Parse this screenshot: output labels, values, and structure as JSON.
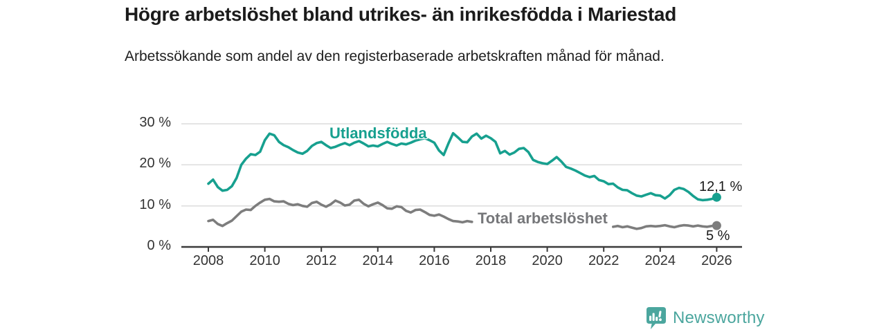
{
  "header": {
    "title": "Högre arbetslöshet bland utrikes- än inrikesfödda i Mariestad",
    "subtitle": "Arbetssökande som andel av den registerbaserade arbetskraften månad för månad."
  },
  "chart_data": {
    "type": "line",
    "unit": "%",
    "ylim": [
      0,
      30
    ],
    "grid": "horizontal",
    "y_ticks": [
      {
        "label": "30 %",
        "value": 30
      },
      {
        "label": "20 %",
        "value": 20
      },
      {
        "label": "10 %",
        "value": 10
      },
      {
        "label": "0 %",
        "value": 0
      }
    ],
    "x_ticks": [
      2008,
      2010,
      2012,
      2014,
      2016,
      2018,
      2020,
      2022,
      2024,
      2026
    ],
    "series": [
      {
        "name": "Utlandsfödda",
        "color": "#17A08F",
        "end_label": "12,1 %",
        "end_value": 12.1,
        "note": "monthly values estimated from chart, sampled every 2 months",
        "segments": [
          {
            "x_start": 2008,
            "x_step": 0.166667,
            "values": [
              15.4,
              16.4,
              14.6,
              13.7,
              13.9,
              14.8,
              16.8,
              20.0,
              21.5,
              22.6,
              22.4,
              23.2,
              26.0,
              27.6,
              27.2,
              25.6,
              24.8,
              24.3,
              23.6,
              23.0,
              22.7,
              23.4,
              24.6,
              25.3,
              25.6,
              24.8,
              24.1,
              24.4,
              24.9,
              25.3,
              24.8,
              25.4,
              25.8,
              25.2,
              24.5,
              24.7,
              24.5,
              25.1,
              25.6,
              25.1,
              24.7,
              25.2,
              25.0,
              25.4,
              25.9,
              26.2,
              26.5,
              26.0,
              25.4,
              23.5,
              22.4,
              25.2,
              27.7,
              26.7,
              25.6,
              25.5,
              26.9,
              27.6,
              26.4,
              27.1,
              26.5,
              25.6,
              22.8,
              23.4,
              22.5,
              23.0,
              23.9,
              24.1,
              23.1,
              21.2,
              20.7,
              20.4,
              20.2,
              21.0,
              21.9,
              20.8,
              19.5,
              19.1,
              18.6,
              18.0,
              17.4,
              17.0,
              17.3,
              16.3,
              16.0,
              15.3,
              15.4,
              14.5,
              13.9,
              13.8,
              13.1,
              12.5,
              12.3,
              12.7,
              13.1,
              12.6,
              12.5,
              11.8,
              12.6,
              13.9,
              14.4,
              14.1,
              13.4,
              12.4,
              11.6,
              11.4,
              11.5,
              11.7,
              12.1
            ]
          }
        ]
      },
      {
        "name": "Total arbetslöshet",
        "color": "#7D7D7D",
        "end_label": "5 %",
        "end_value": 5,
        "note": "line hidden behind its label between ~2017.4 and ~2022.3",
        "segments": [
          {
            "x_start": 2008,
            "x_step": 0.166667,
            "values": [
              6.3,
              6.6,
              5.6,
              5.1,
              5.8,
              6.4,
              7.5,
              8.6,
              9.1,
              9.0,
              10.0,
              10.8,
              11.5,
              11.7,
              11.1,
              11.0,
              11.1,
              10.5,
              10.2,
              10.4,
              10.0,
              9.8,
              10.7,
              11.0,
              10.3,
              9.8,
              10.4,
              11.3,
              10.8,
              10.1,
              10.3,
              11.3,
              11.5,
              10.5,
              9.9,
              10.4,
              10.8,
              10.2,
              9.4,
              9.3,
              9.9,
              9.7,
              8.8,
              8.4,
              9.0,
              9.1,
              8.5,
              7.8,
              7.6,
              7.9,
              7.4,
              6.8,
              6.3,
              6.2,
              6.0,
              6.3,
              6.1
            ]
          },
          {
            "x_start": 2022.333333,
            "x_step": 0.166667,
            "values": [
              4.9,
              5.1,
              4.8,
              5.0,
              4.7,
              4.4,
              4.6,
              5.0,
              5.1,
              5.0,
              5.1,
              5.3,
              5.0,
              4.8,
              5.1,
              5.3,
              5.2,
              5.0,
              5.2,
              5.0,
              4.9,
              5.1,
              5.2
            ]
          }
        ]
      }
    ]
  },
  "footer": {
    "brand": "Newsworthy",
    "brand_color": "#4BA69E",
    "logo_icon": "bar-chart-speech-bubble-icon"
  }
}
